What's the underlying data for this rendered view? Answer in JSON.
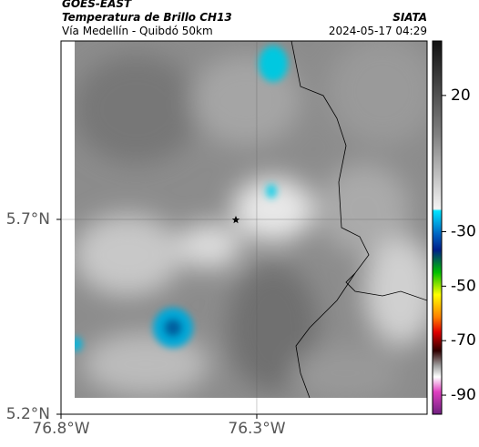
{
  "chart_data": {
    "type": "map",
    "title": "GOES-EAST",
    "subtitle": "Temperatura de Brillo CH13",
    "caption": "Vía Medellín - Quibdó 50km",
    "source": "SIATA",
    "timestamp": "2024-05-17 04:29",
    "xlim": [
      -76.8,
      -75.865
    ],
    "ylim": [
      5.2,
      6.158
    ],
    "xticks": [
      {
        "value": -76.8,
        "label": "76.8°W"
      },
      {
        "value": -76.3,
        "label": "76.3°W"
      }
    ],
    "yticks": [
      {
        "value": 5.2,
        "label": "5.2°N"
      },
      {
        "value": 5.7,
        "label": "5.7°N"
      }
    ],
    "grid": true,
    "colorbar": {
      "lim": [
        40,
        -97
      ],
      "ticks": [
        20,
        -30,
        -50,
        -70,
        -90
      ]
    }
  }
}
